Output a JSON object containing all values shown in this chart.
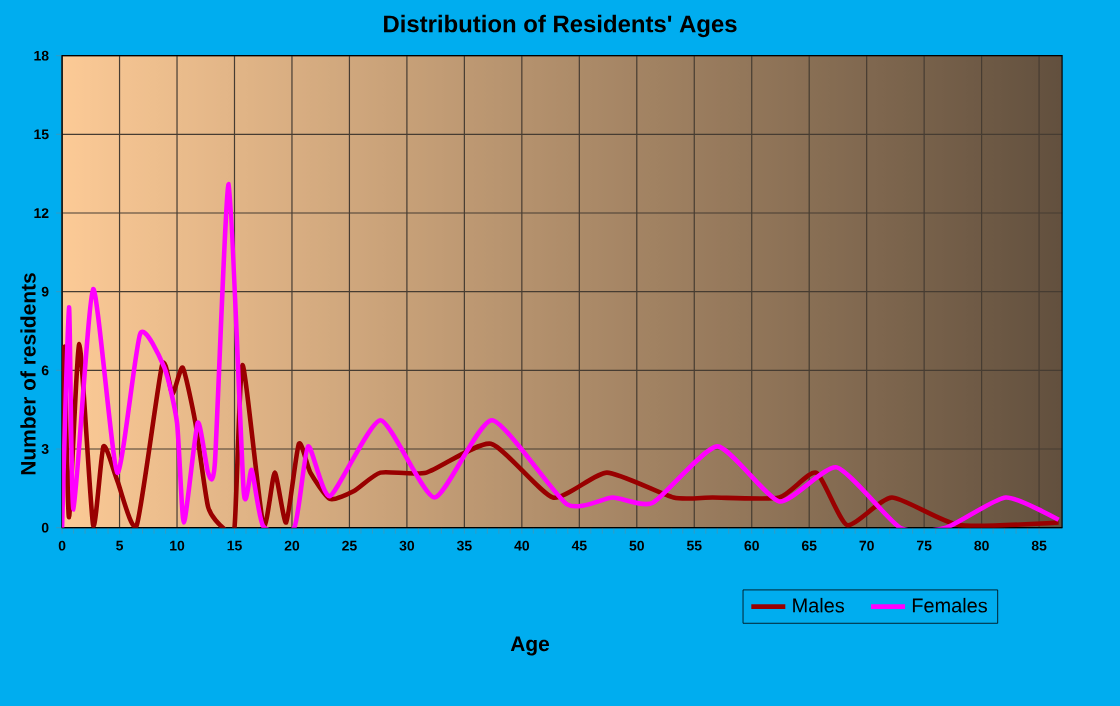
{
  "chart_data": {
    "type": "line",
    "title": "Distribution of Residents' Ages",
    "xlabel": "Age",
    "ylabel": "Number of residents",
    "xlim": [
      0,
      87
    ],
    "ylim": [
      0,
      18
    ],
    "xticks": [
      0,
      5,
      10,
      15,
      20,
      25,
      30,
      35,
      40,
      45,
      50,
      55,
      60,
      65,
      70,
      75,
      80,
      85
    ],
    "yticks": [
      0,
      3,
      6,
      9,
      12,
      15,
      18
    ],
    "grid": true,
    "legend": "bottom right",
    "marker": "none",
    "line_style": "solid",
    "series": [
      {
        "name": "Males",
        "color": "#990000",
        "x": [
          0,
          0.2,
          0.6,
          1.5,
          2.7,
          3.6,
          4.8,
          6.5,
          8.7,
          9.6,
          10.5,
          11.6,
          12.7,
          14,
          15,
          15.7,
          17.5,
          18.5,
          19.5,
          20.6,
          21.6,
          23.3,
          25.4,
          27.7,
          31.7,
          37.3,
          42.7,
          47.4,
          53.2,
          56.6,
          62.4,
          65.6,
          68.3,
          72.2,
          78,
          86.7
        ],
        "values": [
          2,
          6.9,
          0.4,
          7,
          0.1,
          3.1,
          1.8,
          0.1,
          6.2,
          5.1,
          6.1,
          4,
          0.8,
          0,
          0,
          6.2,
          0.1,
          2.1,
          0.2,
          3.2,
          2.1,
          1.1,
          1.4,
          2.1,
          2.1,
          3.2,
          1.15,
          2.1,
          1.15,
          1.15,
          1.15,
          2.1,
          0.1,
          1.15,
          0.1,
          0.2
        ]
      },
      {
        "name": "Females",
        "color": "#ff00ff",
        "x": [
          0,
          0.6,
          1,
          2.7,
          4.8,
          6.8,
          8.9,
          10,
          10.6,
          11.8,
          12.7,
          13.3,
          14.5,
          15.8,
          16.5,
          17.5,
          20.2,
          21.4,
          23.3,
          27.7,
          32.4,
          37.4,
          43.9,
          47.9,
          51.4,
          57,
          62.4,
          67.4,
          72.9,
          76.9,
          82.1,
          86.7
        ],
        "values": [
          0,
          8.4,
          0.7,
          9.1,
          2.1,
          7.4,
          6.1,
          4,
          0.2,
          4,
          2.1,
          2.5,
          13.1,
          1.4,
          2.2,
          0.05,
          0,
          3.1,
          1.2,
          4.1,
          1.15,
          4.1,
          0.9,
          1.15,
          0.95,
          3.1,
          1,
          2.3,
          0,
          0,
          1.15,
          0.3
        ]
      }
    ]
  }
}
